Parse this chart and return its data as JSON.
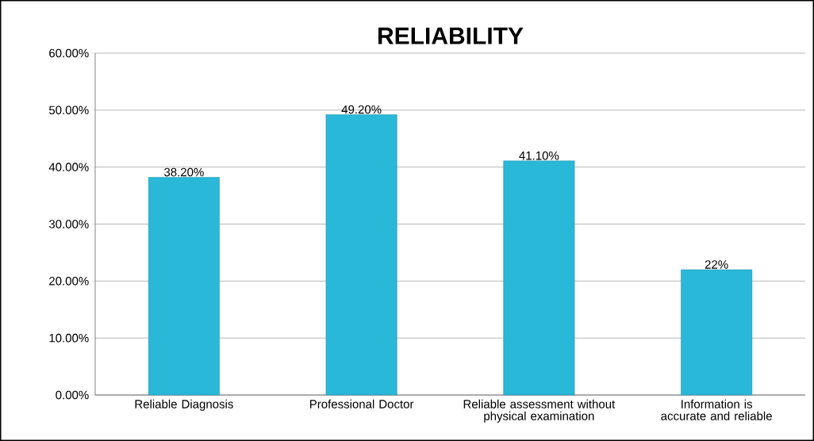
{
  "chart_data": {
    "type": "bar",
    "title": "RELIABILITY",
    "categories": [
      "Reliable Diagnosis",
      "Professional Doctor",
      "Reliable assessment without physical examination",
      "Information is accurate and reliable"
    ],
    "values": [
      38.2,
      49.2,
      41.1,
      22
    ],
    "value_labels": [
      "38.20%",
      "49.20%",
      "41.10%",
      "22%"
    ],
    "color": "#29b8d8",
    "ylim": [
      0,
      60
    ],
    "yticks": [
      {
        "value": 0,
        "label": "0.00%"
      },
      {
        "value": 10,
        "label": "10.00%"
      },
      {
        "value": 20,
        "label": "20.00%"
      },
      {
        "value": 30,
        "label": "30.00%"
      },
      {
        "value": 40,
        "label": "40.00%"
      },
      {
        "value": 50,
        "label": "50.00%"
      },
      {
        "value": 60,
        "label": "60.00%"
      }
    ],
    "grid": "y"
  }
}
